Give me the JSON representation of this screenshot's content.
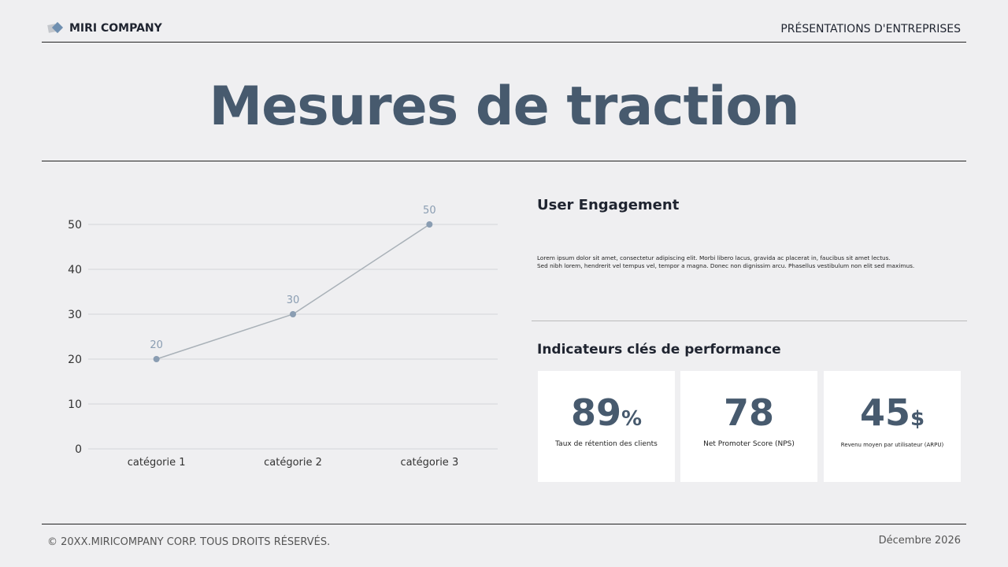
{
  "header": {
    "company": "MIRI COMPANY",
    "section": "PRÉSENTATIONS D'ENTREPRISES"
  },
  "title": "Mesures de traction",
  "engagement": {
    "title": "User Engagement",
    "text_lines": [
      "Lorem ipsum dolor sit amet, consectetur adipiscing elit. Morbi libero lacus, gravida ac placerat in, faucibus sit amet lectus.",
      "Sed nibh lorem, hendrerit vel tempus vel, tempor a magna. Donec non dignissim arcu. Phasellus vestibulum non elit sed maximus."
    ]
  },
  "kpi": {
    "title": "Indicateurs clés de performance",
    "cards": [
      {
        "value": "89",
        "unit": "%",
        "label": "Taux de rétention des clients"
      },
      {
        "value": "78",
        "unit": "",
        "label": "Net Promoter Score (NPS)"
      },
      {
        "value": "45",
        "unit": "$",
        "label": "Revenu moyen par utilisateur (ARPU)"
      }
    ]
  },
  "footer": {
    "copyright": "© 20XX.MIRICOMPANY CORP. TOUS DROITS RÉSERVÉS.",
    "date": "Décembre 2026"
  },
  "colors": {
    "accent": "#475a6e",
    "line": "#a9b1b8",
    "point": "#8a9db2"
  },
  "chart_data": {
    "type": "line",
    "categories": [
      "catégorie 1",
      "catégorie 2",
      "catégorie 3"
    ],
    "values": [
      20,
      30,
      50
    ],
    "ylim": [
      0,
      50
    ],
    "yticks": [
      0,
      10,
      20,
      30,
      40,
      50
    ],
    "grid": true,
    "data_labels": true
  }
}
